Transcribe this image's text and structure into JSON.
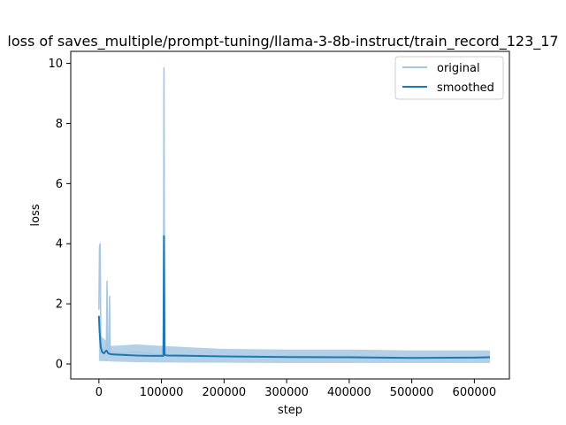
{
  "chart_data": {
    "type": "line",
    "title": "loss of saves_multiple/prompt-tuning/llama-3-8b-instruct/train_record_123_17",
    "xlabel": "step",
    "ylabel": "loss",
    "xlim": [
      -45000,
      656000
    ],
    "ylim": [
      -0.5,
      10.4
    ],
    "xticks": [
      0,
      100000,
      200000,
      300000,
      400000,
      500000,
      600000
    ],
    "xtick_labels": [
      "0",
      "100000",
      "200000",
      "300000",
      "400000",
      "500000",
      "600000"
    ],
    "yticks": [
      0,
      2,
      4,
      6,
      8,
      10
    ],
    "ytick_labels": [
      "0",
      "2",
      "4",
      "6",
      "8",
      "10"
    ],
    "grid": false,
    "legend_placement": "top-right",
    "series": [
      {
        "name": "original",
        "color": "#a6c8e3",
        "x": [
          0,
          1000,
          2000,
          3000,
          4000,
          5000,
          8000,
          12000,
          13000,
          14000,
          16000,
          17000,
          18000,
          25000,
          40000,
          60000,
          80000,
          100000,
          103000,
          104000,
          105000,
          106000,
          110000,
          130000,
          200000,
          300000,
          400000,
          500000,
          600000,
          625000
        ],
        "values": [
          1.8,
          3.9,
          4.0,
          1.0,
          0.6,
          0.4,
          0.5,
          0.6,
          2.75,
          0.5,
          0.4,
          2.25,
          0.4,
          0.35,
          0.35,
          0.4,
          0.35,
          0.3,
          0.3,
          9.85,
          0.3,
          0.35,
          0.3,
          0.3,
          0.25,
          0.25,
          0.25,
          0.2,
          0.22,
          0.25
        ]
      },
      {
        "name": "smoothed",
        "color": "#1f77b4",
        "x": [
          0,
          1000,
          2000,
          3000,
          5000,
          8000,
          12000,
          15000,
          20000,
          40000,
          60000,
          80000,
          100000,
          103000,
          104000,
          105000,
          110000,
          150000,
          200000,
          300000,
          400000,
          500000,
          600000,
          625000
        ],
        "values": [
          1.6,
          1.1,
          0.8,
          0.55,
          0.4,
          0.35,
          0.45,
          0.35,
          0.32,
          0.3,
          0.28,
          0.27,
          0.27,
          0.27,
          4.25,
          0.3,
          0.28,
          0.27,
          0.25,
          0.23,
          0.22,
          0.2,
          0.21,
          0.22
        ]
      }
    ],
    "original_band": {
      "x": [
        0,
        20000,
        60000,
        100000,
        150000,
        200000,
        300000,
        400000,
        500000,
        600000,
        625000
      ],
      "upper": [
        1.0,
        0.6,
        0.65,
        0.6,
        0.55,
        0.5,
        0.48,
        0.48,
        0.45,
        0.45,
        0.45
      ],
      "lower": [
        0.1,
        0.08,
        0.06,
        0.05,
        0.04,
        0.04,
        0.03,
        0.03,
        0.03,
        0.03,
        0.03
      ]
    }
  }
}
